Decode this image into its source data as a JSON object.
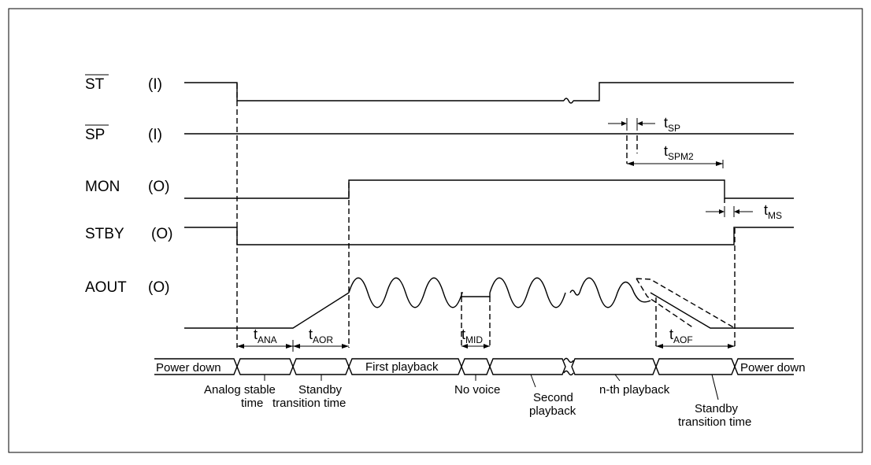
{
  "signals": [
    {
      "name": "ST",
      "dir": "(I)",
      "overline": true
    },
    {
      "name": "SP",
      "dir": "(I)",
      "overline": true
    },
    {
      "name": "MON",
      "dir": "(O)",
      "overline": false
    },
    {
      "name": "STBY",
      "dir": "(O)",
      "overline": false
    },
    {
      "name": "AOUT",
      "dir": "(O)",
      "overline": false
    }
  ],
  "timings": {
    "tsp": {
      "t": "t",
      "sub": "SP"
    },
    "tspm2": {
      "t": "t",
      "sub": "SPM2"
    },
    "tms": {
      "t": "t",
      "sub": "MS"
    },
    "tana": {
      "t": "t",
      "sub": "ANA"
    },
    "taor": {
      "t": "t",
      "sub": "AOR"
    },
    "tmid": {
      "t": "t",
      "sub": "MID"
    },
    "taof": {
      "t": "t",
      "sub": "AOF"
    }
  },
  "states": {
    "power_down_1": "Power down",
    "first_playback": "First playback",
    "power_down_2": "Power down"
  },
  "state_notes": {
    "analog_1": "Analog stable",
    "analog_2": "time",
    "standby_a_1": "Standby",
    "standby_a_2": "transition time",
    "no_voice": "No voice",
    "second_1": "Second",
    "second_2": "playback",
    "nth": "n-th playback",
    "standby_b_1": "Standby",
    "standby_b_2": "transition time"
  }
}
